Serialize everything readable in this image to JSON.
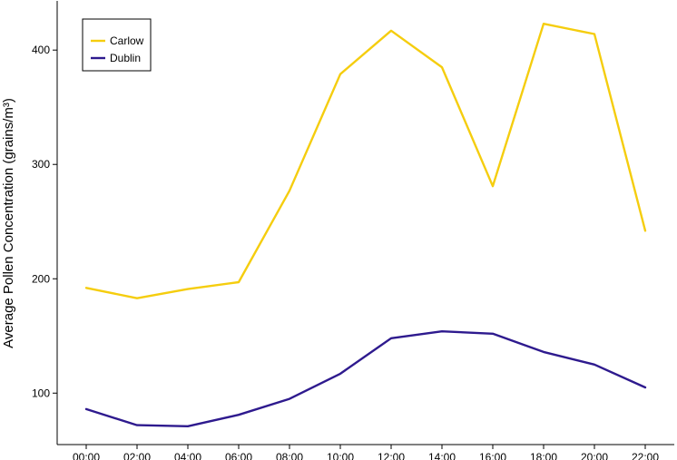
{
  "chart_data": {
    "type": "line",
    "title": "",
    "xlabel": "",
    "ylabel": "Average Pollen Concentration (grains/m³)",
    "categories": [
      "00:00",
      "02:00",
      "04:00",
      "06:00",
      "08:00",
      "10:00",
      "12:00",
      "14:00",
      "16:00",
      "18:00",
      "20:00",
      "22:00"
    ],
    "yticks": [
      100,
      200,
      300,
      400
    ],
    "ylim": [
      55,
      443
    ],
    "grid": false,
    "legend_position": "top-left",
    "series": [
      {
        "name": "Carlow",
        "color": "#F5CD0E",
        "values": [
          192,
          183,
          191,
          197,
          277,
          379,
          417,
          385,
          281,
          423,
          414,
          242
        ]
      },
      {
        "name": "Dublin",
        "color": "#2E1A8E",
        "values": [
          86,
          72,
          71,
          81,
          95,
          117,
          148,
          154,
          152,
          136,
          125,
          105
        ]
      }
    ]
  }
}
